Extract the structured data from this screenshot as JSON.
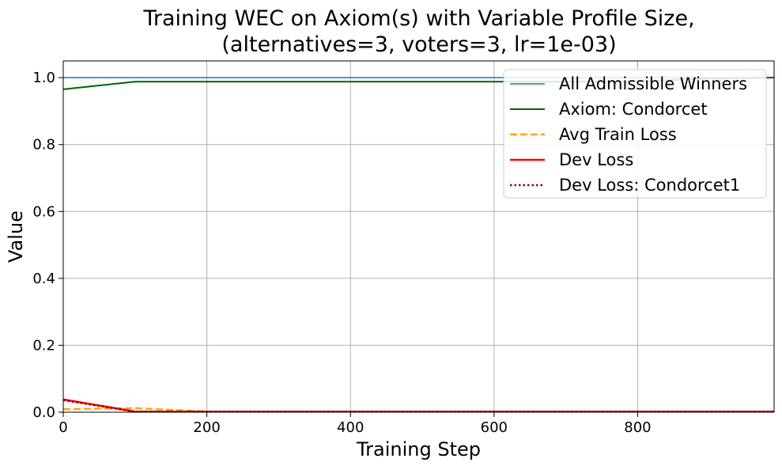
{
  "chart_data": {
    "type": "line",
    "title": "Training WEC on Axiom(s) with Variable Profile Size,",
    "subtitle": "(alternatives=3, voters=3, lr=1e-03)",
    "xlabel": "Training Step",
    "ylabel": "Value",
    "xlim": [
      0,
      990
    ],
    "ylim": [
      0.0,
      1.05
    ],
    "xticks": [
      0,
      200,
      400,
      600,
      800
    ],
    "xtick_labels": [
      "0",
      "200",
      "400",
      "600",
      "800"
    ],
    "yticks": [
      0.0,
      0.2,
      0.4,
      0.6,
      0.8,
      1.0
    ],
    "ytick_labels": [
      "0.0",
      "0.2",
      "0.4",
      "0.6",
      "0.8",
      "1.0"
    ],
    "grid": true,
    "legend_position": "top-right",
    "series": [
      {
        "name": "All Admissible Winners",
        "color": "#1f77b4",
        "style": "solid",
        "width": 1.5,
        "x": [
          0,
          990
        ],
        "y": [
          1.0,
          1.0
        ]
      },
      {
        "name": "Axiom: Condorcet",
        "color": "#006400",
        "style": "solid",
        "width": 2,
        "x": [
          0,
          100,
          200,
          300,
          400,
          500,
          600,
          700,
          800,
          900,
          990
        ],
        "y": [
          0.965,
          0.988,
          0.988,
          0.988,
          0.988,
          0.988,
          0.988,
          0.988,
          0.988,
          0.998,
          1.0
        ]
      },
      {
        "name": "Avg Train Loss",
        "color": "#ffa500",
        "style": "dashed",
        "width": 2.5,
        "x": [
          0,
          100,
          200,
          300,
          400,
          500,
          600,
          700,
          800,
          900,
          990
        ],
        "y": [
          0.009,
          0.012,
          0.002,
          0.002,
          0.002,
          0.002,
          0.002,
          0.002,
          0.002,
          0.002,
          0.002
        ]
      },
      {
        "name": "Dev Loss",
        "color": "#ff0000",
        "style": "solid",
        "width": 2.5,
        "x": [
          0,
          100,
          200,
          300,
          400,
          500,
          600,
          700,
          800,
          900,
          990
        ],
        "y": [
          0.038,
          0.002,
          0.002,
          0.002,
          0.002,
          0.002,
          0.002,
          0.002,
          0.002,
          0.002,
          0.002
        ]
      },
      {
        "name": "Dev Loss: Condorcet1",
        "color": "#8b0000",
        "style": "dotted",
        "width": 2.5,
        "x": [
          0,
          100,
          200,
          300,
          400,
          500,
          600,
          700,
          800,
          900,
          990
        ],
        "y": [
          0.036,
          0.002,
          0.002,
          0.002,
          0.002,
          0.002,
          0.002,
          0.002,
          0.002,
          0.002,
          0.002
        ]
      }
    ]
  }
}
